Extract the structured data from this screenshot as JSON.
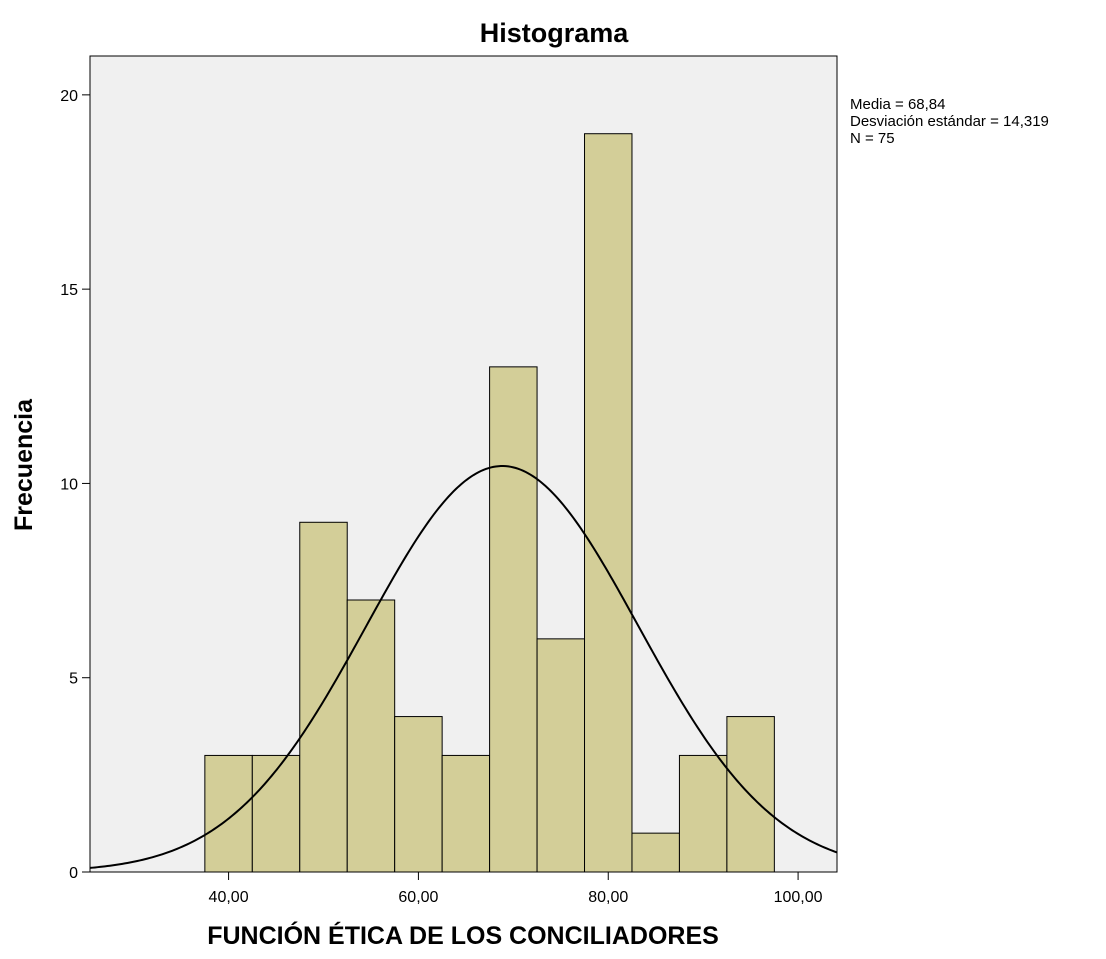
{
  "chart_data": {
    "type": "bar",
    "title": "Histograma",
    "xlabel": "FUNCIÓN ÉTICA DE LOS CONCILIADORES",
    "ylabel": "Frecuencia",
    "bin_width": 5,
    "bins": [
      {
        "start": 37.5,
        "end": 42.5,
        "count": 3
      },
      {
        "start": 42.5,
        "end": 47.5,
        "count": 3
      },
      {
        "start": 47.5,
        "end": 52.5,
        "count": 9
      },
      {
        "start": 52.5,
        "end": 57.5,
        "count": 7
      },
      {
        "start": 57.5,
        "end": 62.5,
        "count": 4
      },
      {
        "start": 62.5,
        "end": 67.5,
        "count": 3
      },
      {
        "start": 67.5,
        "end": 72.5,
        "count": 13
      },
      {
        "start": 72.5,
        "end": 77.5,
        "count": 6
      },
      {
        "start": 77.5,
        "end": 82.5,
        "count": 19
      },
      {
        "start": 82.5,
        "end": 87.5,
        "count": 1
      },
      {
        "start": 87.5,
        "end": 92.5,
        "count": 3
      },
      {
        "start": 92.5,
        "end": 97.5,
        "count": 4
      }
    ],
    "xlim": [
      25.4,
      104.1
    ],
    "ylim": [
      0,
      21
    ],
    "x_ticks": [
      {
        "value": 40,
        "label": "40,00"
      },
      {
        "value": 60,
        "label": "60,00"
      },
      {
        "value": 80,
        "label": "80,00"
      },
      {
        "value": 100,
        "label": "100,00"
      }
    ],
    "y_ticks": [
      {
        "value": 0,
        "label": "0"
      },
      {
        "value": 5,
        "label": "5"
      },
      {
        "value": 10,
        "label": "10"
      },
      {
        "value": 15,
        "label": "15"
      },
      {
        "value": 20,
        "label": "20"
      }
    ],
    "normal_curve": {
      "mean": 68.84,
      "sd": 14.319,
      "n": 75
    },
    "stats_box": {
      "placement": "top-right",
      "lines": [
        "Media = 68,84",
        "Desviación estándar = 14,319",
        "N = 75"
      ]
    },
    "colors": {
      "bar_fill": "#d3ce98",
      "plot_background": "#f0f0f0"
    },
    "grid": false
  }
}
